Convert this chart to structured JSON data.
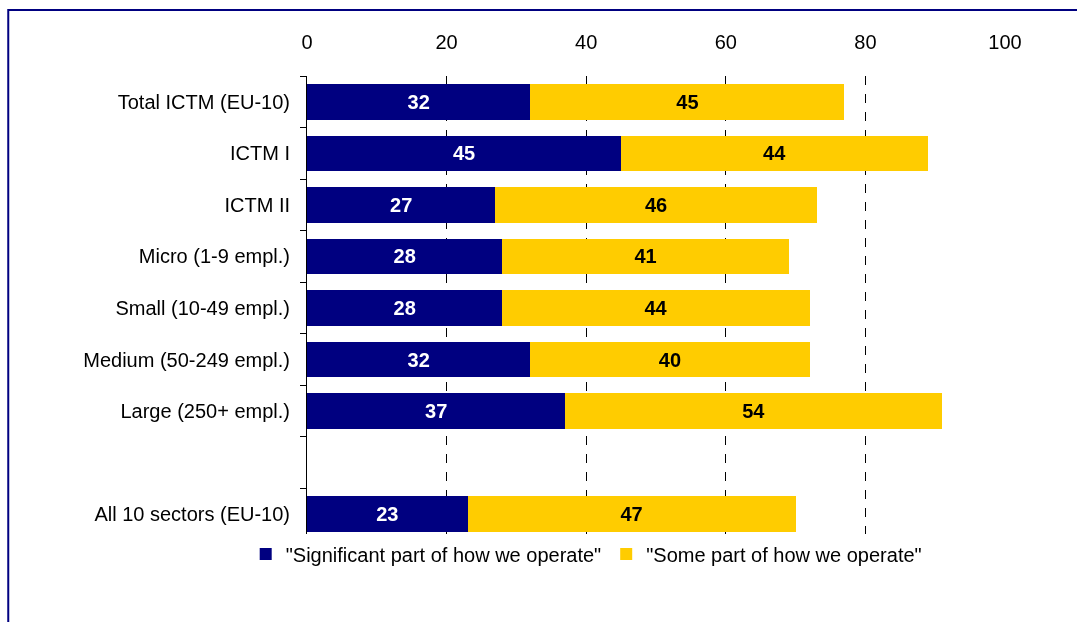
{
  "chart_data": {
    "type": "bar",
    "orientation": "horizontal",
    "stacked": true,
    "categories": [
      "Total ICTM (EU-10)",
      "ICTM I",
      "ICTM II",
      "Micro (1-9 empl.)",
      "Small (10-49 empl.)",
      "Medium (50-249 empl.)",
      "Large (250+ empl.)",
      null,
      "All 10 sectors (EU-10)"
    ],
    "series": [
      {
        "name": "\"Significant part of how we operate\"",
        "color": "#000080",
        "values": [
          32,
          45,
          27,
          28,
          28,
          32,
          37,
          null,
          23
        ]
      },
      {
        "name": "\"Some part of how we operate\"",
        "color": "#ffcc00",
        "values": [
          45,
          44,
          46,
          41,
          44,
          40,
          54,
          null,
          47
        ]
      }
    ],
    "xlim": [
      0,
      100
    ],
    "xticks": [
      0,
      20,
      40,
      60,
      80,
      100
    ],
    "grid": "x",
    "legend": "bottom",
    "data_labels": true
  }
}
